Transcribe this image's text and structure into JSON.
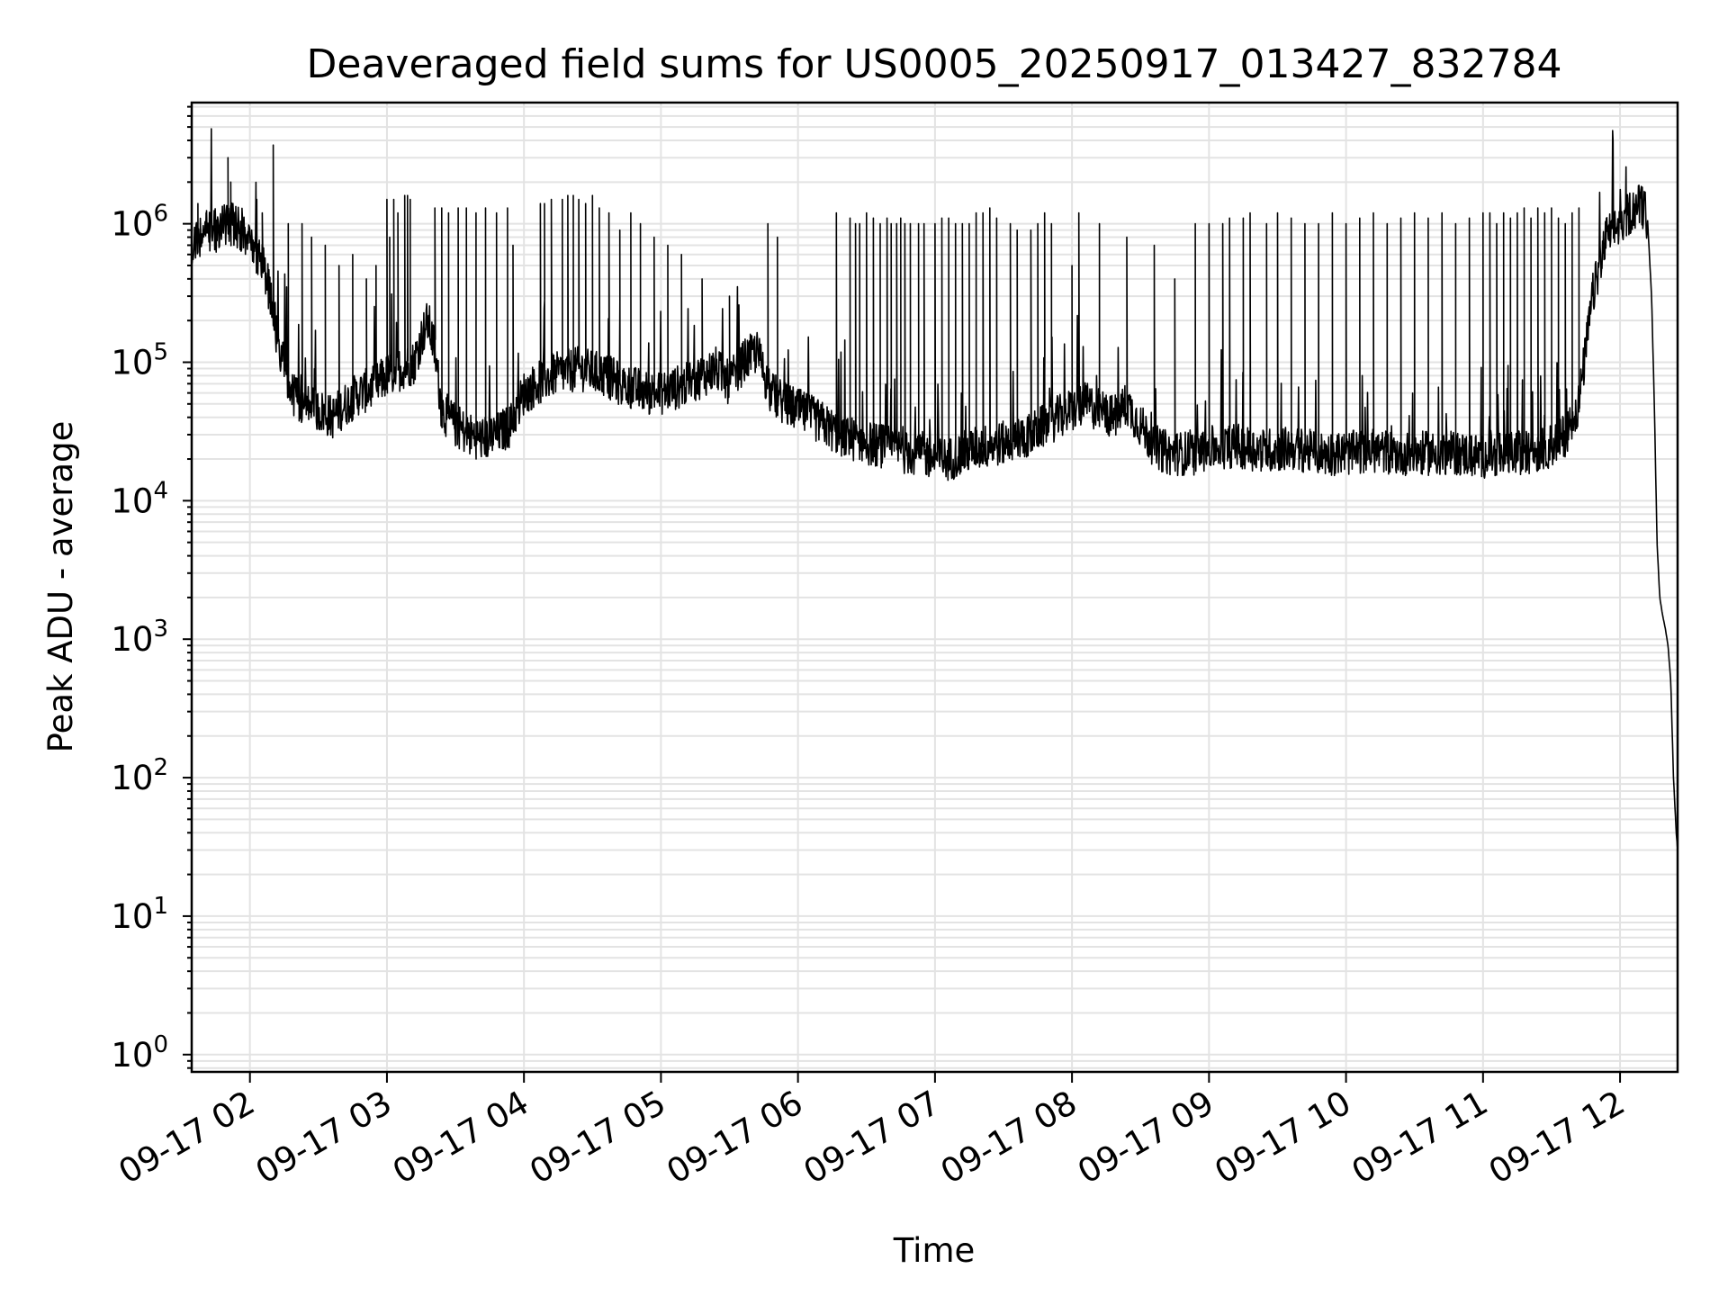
{
  "chart_data": {
    "type": "line",
    "title": "Deaveraged field sums for US0005_20250917_013427_832784",
    "xlabel": "Time",
    "ylabel": "Peak ADU - average",
    "yscale": "log",
    "ylim": [
      0.75,
      7500000
    ],
    "xlim_hours": [
      1.575,
      12.42
    ],
    "grid": true,
    "x_ticks": [
      {
        "label": "09-17 02",
        "hour": 2
      },
      {
        "label": "09-17 03",
        "hour": 3
      },
      {
        "label": "09-17 04",
        "hour": 4
      },
      {
        "label": "09-17 05",
        "hour": 5
      },
      {
        "label": "09-17 06",
        "hour": 6
      },
      {
        "label": "09-17 07",
        "hour": 7
      },
      {
        "label": "09-17 08",
        "hour": 8
      },
      {
        "label": "09-17 09",
        "hour": 9
      },
      {
        "label": "09-17 10",
        "hour": 10
      },
      {
        "label": "09-17 11",
        "hour": 11
      },
      {
        "label": "09-17 12",
        "hour": 12
      }
    ],
    "y_ticks": [
      {
        "base": "10",
        "exp": "0",
        "value": 1
      },
      {
        "base": "10",
        "exp": "1",
        "value": 10
      },
      {
        "base": "10",
        "exp": "2",
        "value": 100
      },
      {
        "base": "10",
        "exp": "3",
        "value": 1000
      },
      {
        "base": "10",
        "exp": "4",
        "value": 10000
      },
      {
        "base": "10",
        "exp": "5",
        "value": 100000
      },
      {
        "base": "10",
        "exp": "6",
        "value": 1000000
      }
    ],
    "series": [
      {
        "name": "Peak ADU - average",
        "baseline": {
          "hours": [
            1.575,
            1.65,
            1.75,
            1.85,
            1.95,
            2.0,
            2.1,
            2.15,
            2.2,
            2.3,
            2.4,
            2.5,
            2.6,
            2.7,
            2.8,
            2.9,
            3.0,
            3.1,
            3.2,
            3.25,
            3.3,
            3.35,
            3.4,
            3.5,
            3.6,
            3.7,
            3.8,
            3.9,
            4.0,
            4.1,
            4.2,
            4.3,
            4.4,
            4.5,
            4.6,
            4.7,
            4.8,
            4.9,
            5.0,
            5.1,
            5.2,
            5.3,
            5.4,
            5.5,
            5.6,
            5.7,
            5.8,
            5.9,
            6.0,
            6.1,
            6.2,
            6.3,
            6.4,
            6.5,
            6.6,
            6.7,
            6.8,
            6.9,
            7.0,
            7.1,
            7.2,
            7.3,
            7.4,
            7.5,
            7.6,
            7.7,
            7.8,
            7.9,
            8.0,
            8.1,
            8.2,
            8.3,
            8.4,
            8.5,
            8.6,
            8.7,
            8.8,
            8.9,
            9.0,
            9.2,
            9.4,
            9.6,
            9.8,
            10.0,
            10.2,
            10.4,
            10.6,
            10.8,
            11.0,
            11.2,
            11.4,
            11.5,
            11.6,
            11.7,
            11.8,
            11.9,
            12.0,
            12.1,
            12.15,
            12.2,
            12.23,
            12.25,
            12.27,
            12.29,
            12.31,
            12.33,
            12.35,
            12.37,
            12.39,
            12.41,
            12.42
          ],
          "values": [
            700000,
            850000,
            900000,
            1000000,
            900000,
            800000,
            500000,
            300000,
            150000,
            60000,
            50000,
            45000,
            40000,
            50000,
            60000,
            65000,
            80000,
            90000,
            100000,
            150000,
            200000,
            120000,
            45000,
            35000,
            30000,
            28000,
            30000,
            35000,
            60000,
            70000,
            80000,
            85000,
            90000,
            85000,
            80000,
            70000,
            65000,
            60000,
            60000,
            65000,
            70000,
            80000,
            90000,
            70000,
            100000,
            120000,
            60000,
            50000,
            45000,
            40000,
            35000,
            30000,
            28000,
            26000,
            25000,
            24000,
            22000,
            22000,
            20000,
            20000,
            22000,
            24000,
            25000,
            26000,
            28000,
            30000,
            35000,
            40000,
            45000,
            50000,
            45000,
            40000,
            50000,
            35000,
            25000,
            22000,
            22000,
            22000,
            24000,
            25000,
            23000,
            24000,
            22000,
            22000,
            23000,
            22000,
            22000,
            22000,
            21000,
            22000,
            23000,
            25000,
            30000,
            50000,
            300000,
            800000,
            1000000,
            1300000,
            1400000,
            1100000,
            300000,
            50000,
            5000,
            2000,
            1500,
            1200,
            900,
            500,
            100,
            40,
            30
          ],
          "noise_factor": 1.45,
          "sample_step_hours": 0.0035
        },
        "spikes": {
          "hours": [
            1.62,
            1.68,
            1.84,
            1.86,
            2.05,
            2.09,
            2.17,
            2.28,
            2.38,
            2.45,
            2.55,
            2.65,
            2.75,
            2.85,
            2.92,
            3.0,
            3.02,
            3.05,
            3.08,
            3.13,
            3.15,
            3.17,
            3.35,
            3.4,
            3.45,
            3.52,
            3.58,
            3.65,
            3.72,
            3.8,
            3.88,
            3.92,
            4.12,
            4.15,
            4.2,
            4.28,
            4.32,
            4.36,
            4.4,
            4.45,
            4.5,
            4.55,
            4.62,
            4.7,
            4.78,
            4.85,
            4.95,
            5.05,
            5.15,
            5.3,
            5.5,
            5.78,
            5.85,
            6.28,
            6.38,
            6.42,
            6.45,
            6.5,
            6.55,
            6.6,
            6.65,
            6.68,
            6.72,
            6.75,
            6.78,
            6.82,
            6.88,
            6.92,
            7.0,
            7.05,
            7.1,
            7.15,
            7.2,
            7.25,
            7.3,
            7.35,
            7.4,
            7.45,
            7.55,
            7.6,
            7.7,
            7.75,
            7.8,
            7.85,
            8.0,
            8.05,
            8.2,
            8.4,
            8.6,
            8.75,
            8.9,
            9.0,
            9.1,
            9.15,
            9.25,
            9.3,
            9.42,
            9.5,
            9.6,
            9.7,
            9.8,
            9.9,
            10.0,
            10.1,
            10.2,
            10.3,
            10.4,
            10.5,
            10.6,
            10.7,
            10.8,
            10.9,
            11.0,
            11.05,
            11.1,
            11.15,
            11.2,
            11.25,
            11.3,
            11.35,
            11.4,
            11.45,
            11.5,
            11.55,
            11.6,
            11.65,
            11.7
          ],
          "values": [
            1400000,
            1200000,
            3000000,
            2000000,
            1500000,
            1200000,
            3700000,
            1000000,
            1000000,
            800000,
            700000,
            500000,
            600000,
            400000,
            500000,
            1500000,
            800000,
            1500000,
            1200000,
            1600000,
            1600000,
            1500000,
            1300000,
            1300000,
            1200000,
            1300000,
            1300000,
            1200000,
            1300000,
            1200000,
            1300000,
            700000,
            1400000,
            1400000,
            1500000,
            1500000,
            1600000,
            1600000,
            1500000,
            1400000,
            1600000,
            1300000,
            1200000,
            900000,
            1200000,
            1000000,
            800000,
            700000,
            600000,
            400000,
            300000,
            1000000,
            800000,
            1200000,
            1100000,
            1000000,
            1000000,
            1200000,
            1100000,
            1000000,
            1100000,
            1000000,
            1000000,
            1100000,
            1000000,
            1000000,
            1000000,
            1000000,
            1000000,
            1100000,
            1100000,
            1000000,
            1000000,
            1000000,
            1200000,
            1200000,
            1300000,
            1100000,
            1000000,
            900000,
            900000,
            1000000,
            1200000,
            1000000,
            500000,
            1200000,
            1000000,
            800000,
            700000,
            400000,
            1000000,
            1000000,
            1000000,
            1100000,
            1100000,
            1200000,
            1000000,
            1200000,
            1100000,
            1000000,
            1000000,
            1200000,
            1000000,
            1100000,
            1200000,
            1000000,
            1100000,
            1200000,
            1100000,
            1200000,
            1000000,
            1100000,
            1200000,
            1200000,
            1000000,
            1200000,
            1100000,
            1200000,
            1300000,
            1100000,
            1300000,
            1200000,
            1300000,
            1100000,
            1000000,
            1200000,
            1300000
          ]
        }
      }
    ]
  }
}
